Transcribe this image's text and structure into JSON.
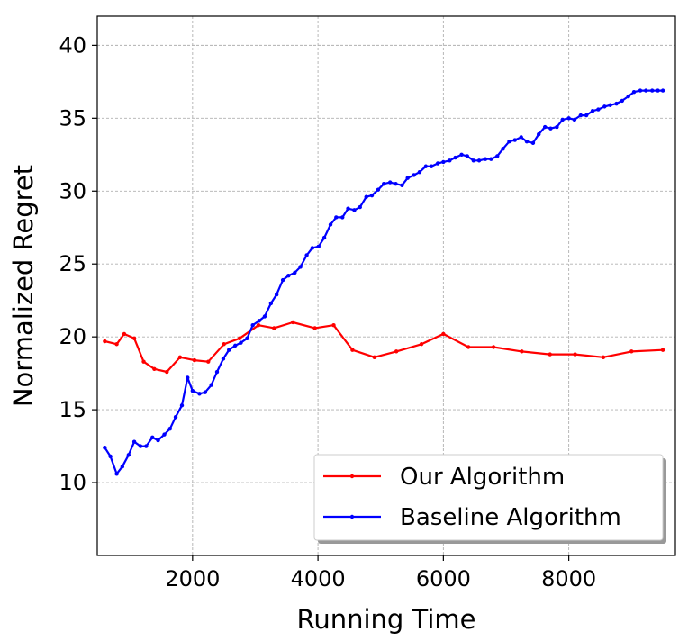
{
  "chart_data": {
    "type": "line",
    "title": "",
    "xlabel": "Running Time",
    "ylabel": "Normalized Regret",
    "xlim": [
      480,
      9700
    ],
    "ylim": [
      5,
      42
    ],
    "xticks": [
      2000,
      4000,
      6000,
      8000
    ],
    "yticks": [
      10,
      15,
      20,
      25,
      30,
      35,
      40
    ],
    "grid": true,
    "legend_position": "lower-right",
    "series": [
      {
        "name": "Our Algorithm",
        "color": "#ff0000",
        "x": [
          600,
          790,
          910,
          1070,
          1220,
          1390,
          1590,
          1800,
          2030,
          2250,
          2500,
          2750,
          3050,
          3300,
          3600,
          3950,
          4250,
          4550,
          4900,
          5250,
          5650,
          6000,
          6400,
          6800,
          7250,
          7700,
          8100,
          8550,
          9000,
          9500
        ],
        "y": [
          19.7,
          19.5,
          20.2,
          19.9,
          18.3,
          17.8,
          17.6,
          18.6,
          18.4,
          18.3,
          19.5,
          19.9,
          20.8,
          20.6,
          21.0,
          20.6,
          20.8,
          19.1,
          18.6,
          19.0,
          19.5,
          20.2,
          19.3,
          19.3,
          19.0,
          18.8,
          18.8,
          18.6,
          19.0,
          19.1
        ]
      },
      {
        "name": "Baseline Algorithm",
        "color": "#0000ff",
        "x": [
          600,
          690,
          790,
          880,
          980,
          1070,
          1170,
          1260,
          1360,
          1450,
          1550,
          1640,
          1730,
          1830,
          1920,
          2000,
          2110,
          2200,
          2300,
          2390,
          2490,
          2580,
          2680,
          2770,
          2870,
          2960,
          3060,
          3150,
          3250,
          3340,
          3440,
          3530,
          3630,
          3720,
          3820,
          3910,
          4010,
          4100,
          4200,
          4290,
          4390,
          4480,
          4580,
          4670,
          4770,
          4860,
          4960,
          5050,
          5150,
          5240,
          5340,
          5430,
          5530,
          5620,
          5720,
          5810,
          5910,
          6000,
          6100,
          6190,
          6290,
          6380,
          6480,
          6570,
          6670,
          6760,
          6860,
          6950,
          7050,
          7140,
          7240,
          7330,
          7430,
          7520,
          7620,
          7710,
          7810,
          7900,
          8000,
          8090,
          8190,
          8280,
          8380,
          8470,
          8570,
          8660,
          8760,
          8850,
          8950,
          9040,
          9140,
          9230,
          9330,
          9420,
          9500
        ],
        "y": [
          12.4,
          11.8,
          10.6,
          11.1,
          11.9,
          12.8,
          12.5,
          12.5,
          13.1,
          12.9,
          13.3,
          13.7,
          14.5,
          15.3,
          17.2,
          16.3,
          16.1,
          16.2,
          16.7,
          17.6,
          18.5,
          19.1,
          19.4,
          19.6,
          19.9,
          20.8,
          21.1,
          21.4,
          22.3,
          22.9,
          23.9,
          24.2,
          24.4,
          24.8,
          25.6,
          26.1,
          26.2,
          26.8,
          27.7,
          28.2,
          28.2,
          28.8,
          28.7,
          28.9,
          29.6,
          29.7,
          30.1,
          30.5,
          30.6,
          30.5,
          30.4,
          30.9,
          31.1,
          31.3,
          31.7,
          31.7,
          31.9,
          32.0,
          32.1,
          32.3,
          32.5,
          32.4,
          32.1,
          32.1,
          32.2,
          32.2,
          32.4,
          32.9,
          33.4,
          33.5,
          33.7,
          33.4,
          33.3,
          33.9,
          34.4,
          34.3,
          34.4,
          34.9,
          35.0,
          34.9,
          35.2,
          35.2,
          35.5,
          35.6,
          35.8,
          35.9,
          36.0,
          36.2,
          36.5,
          36.8,
          36.9,
          36.9,
          36.9,
          36.9,
          36.9
        ]
      }
    ]
  }
}
